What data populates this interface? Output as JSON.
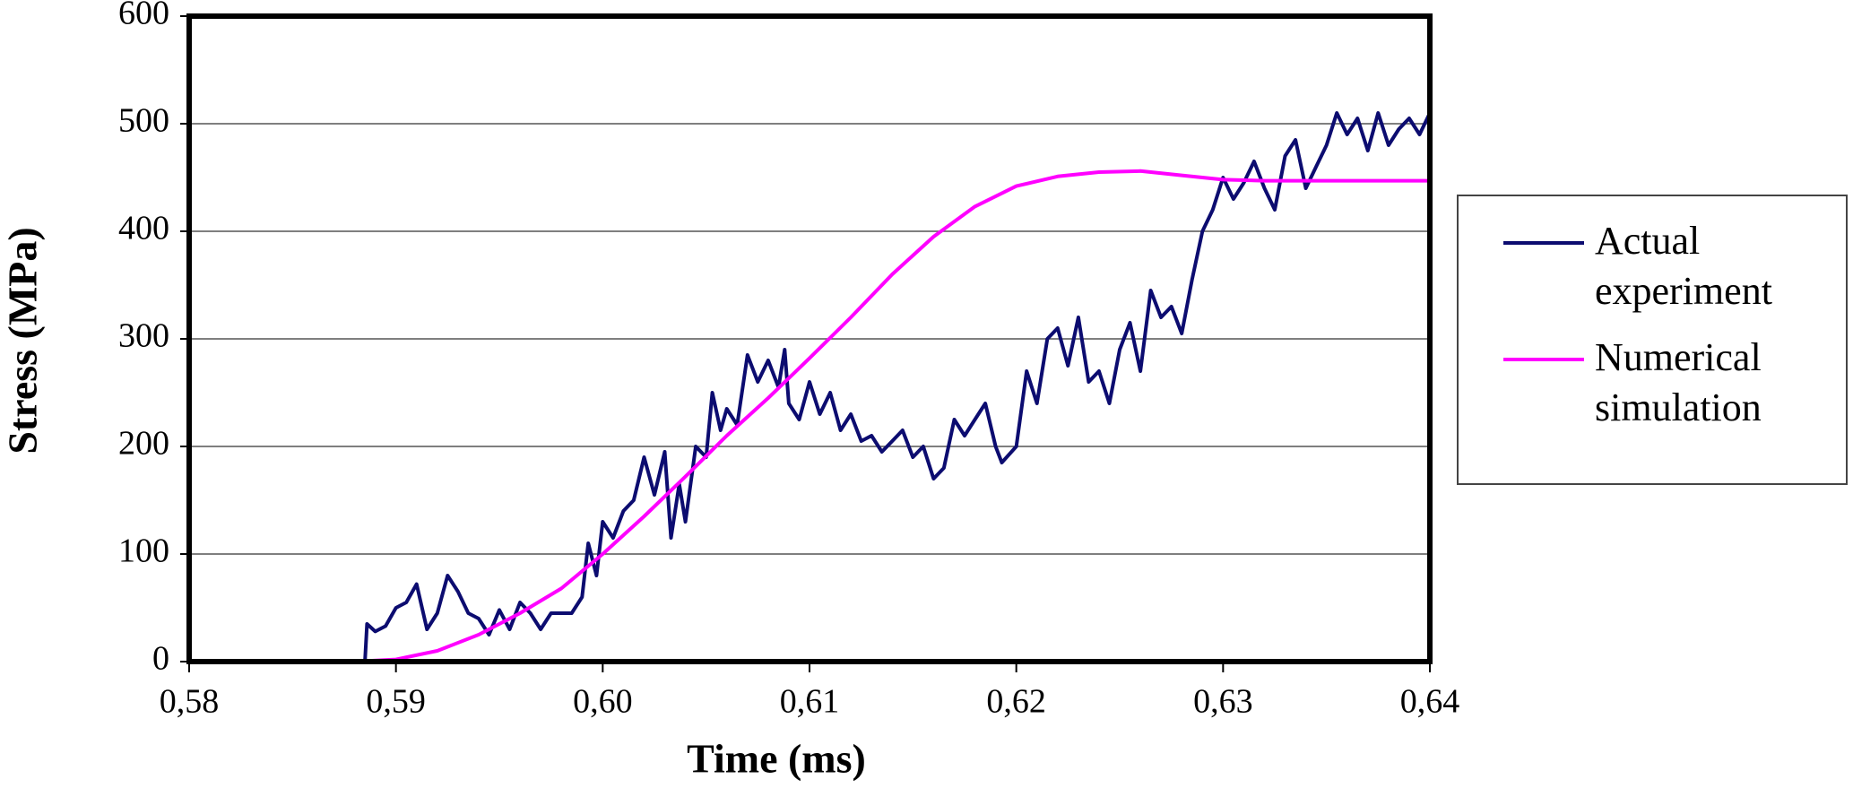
{
  "chart_data": {
    "type": "line",
    "xlabel": "Time (ms)",
    "ylabel": "Stress (MPa)",
    "xlim": [
      0.58,
      0.64
    ],
    "xticks": [
      {
        "value": 0.58,
        "label": "0,58"
      },
      {
        "value": 0.59,
        "label": "0,59"
      },
      {
        "value": 0.6,
        "label": "0,60"
      },
      {
        "value": 0.61,
        "label": "0,61"
      },
      {
        "value": 0.62,
        "label": "0,62"
      },
      {
        "value": 0.63,
        "label": "0,63"
      },
      {
        "value": 0.64,
        "label": "0,64"
      }
    ],
    "ylim": [
      0,
      600
    ],
    "yticks": [
      0,
      100,
      200,
      300,
      400,
      500,
      600
    ],
    "grid": true,
    "legend": "right",
    "series": [
      {
        "name": "Actual experiment",
        "color": "#0c0c70",
        "x": [
          0.58,
          0.5885,
          0.5886,
          0.589,
          0.5895,
          0.59,
          0.5905,
          0.591,
          0.5915,
          0.592,
          0.5925,
          0.593,
          0.5935,
          0.594,
          0.5945,
          0.595,
          0.5955,
          0.596,
          0.5965,
          0.597,
          0.5975,
          0.5985,
          0.599,
          0.5993,
          0.5997,
          0.6,
          0.6005,
          0.601,
          0.6015,
          0.602,
          0.6025,
          0.603,
          0.6033,
          0.6037,
          0.604,
          0.6045,
          0.605,
          0.6053,
          0.6057,
          0.606,
          0.6065,
          0.607,
          0.6075,
          0.608,
          0.6085,
          0.6088,
          0.609,
          0.6095,
          0.61,
          0.6105,
          0.611,
          0.6115,
          0.612,
          0.6125,
          0.613,
          0.6135,
          0.614,
          0.6145,
          0.615,
          0.6155,
          0.616,
          0.6165,
          0.617,
          0.6175,
          0.618,
          0.6185,
          0.619,
          0.6193,
          0.62,
          0.6205,
          0.621,
          0.6215,
          0.622,
          0.6225,
          0.623,
          0.6235,
          0.624,
          0.6245,
          0.625,
          0.6255,
          0.626,
          0.6265,
          0.627,
          0.6275,
          0.628,
          0.6285,
          0.629,
          0.6295,
          0.63,
          0.6305,
          0.631,
          0.6315,
          0.632,
          0.6325,
          0.633,
          0.6335,
          0.634,
          0.6345,
          0.635,
          0.6355,
          0.636,
          0.6365,
          0.637,
          0.6375,
          0.638,
          0.6385,
          0.639,
          0.6395,
          0.64
        ],
        "values": [
          0,
          0,
          35,
          28,
          33,
          50,
          55,
          72,
          30,
          45,
          80,
          65,
          45,
          40,
          25,
          48,
          30,
          55,
          45,
          30,
          45,
          45,
          60,
          110,
          80,
          130,
          115,
          140,
          150,
          190,
          155,
          195,
          115,
          165,
          130,
          200,
          190,
          250,
          215,
          235,
          220,
          285,
          260,
          280,
          255,
          290,
          240,
          225,
          260,
          230,
          250,
          215,
          230,
          205,
          210,
          195,
          205,
          215,
          190,
          200,
          170,
          180,
          225,
          210,
          225,
          240,
          200,
          185,
          200,
          270,
          240,
          300,
          310,
          275,
          320,
          260,
          270,
          240,
          290,
          315,
          270,
          345,
          320,
          330,
          305,
          355,
          400,
          420,
          450,
          430,
          445,
          465,
          440,
          420,
          470,
          485,
          440,
          460,
          480,
          510,
          490,
          505,
          475,
          510,
          480,
          495,
          505,
          490,
          510
        ]
      },
      {
        "name": "Numerical simulation",
        "color": "#ff00ff",
        "x": [
          0.58,
          0.588,
          0.59,
          0.592,
          0.594,
          0.596,
          0.598,
          0.6,
          0.602,
          0.604,
          0.606,
          0.608,
          0.61,
          0.612,
          0.614,
          0.616,
          0.618,
          0.62,
          0.622,
          0.624,
          0.626,
          0.628,
          0.63,
          0.632,
          0.635,
          0.638,
          0.64
        ],
        "values": [
          0,
          0,
          2,
          10,
          25,
          45,
          68,
          100,
          135,
          172,
          210,
          245,
          282,
          320,
          360,
          395,
          423,
          442,
          451,
          455,
          456,
          452,
          448,
          447,
          447,
          447,
          447
        ]
      }
    ]
  }
}
